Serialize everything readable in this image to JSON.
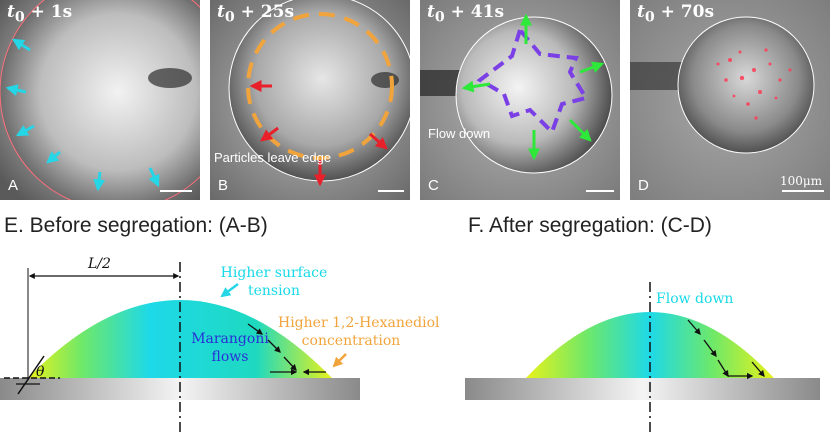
{
  "panels": [
    {
      "time_base": "t",
      "time_sub": "0",
      "time_rest": " + 1s",
      "letter": "A"
    },
    {
      "time_base": "t",
      "time_sub": "0",
      "time_rest": " + 25s",
      "letter": "B",
      "note": "Particles leave edge"
    },
    {
      "time_base": "t",
      "time_sub": "0",
      "time_rest": " + 41s",
      "letter": "C",
      "note": "Flow down"
    },
    {
      "time_base": "t",
      "time_sub": "0",
      "time_rest": " + 70s",
      "letter": "D",
      "scale": "100μm"
    }
  ],
  "section_e": {
    "title": "E. Before segregation: (A-B)",
    "half_length": "L/2",
    "angle": "θ",
    "surface_tension": [
      "Higher surface",
      "tension"
    ],
    "concentration": [
      "Higher 1,2-Hexanediol",
      "concentration"
    ],
    "marangoni": [
      "Marangoni",
      "flows"
    ]
  },
  "section_f": {
    "title": "F. After segregation: (C-D)",
    "flow": "Flow down"
  },
  "colors": {
    "cyan_arrow": "#24d6e6",
    "red_arrow": "#e8202a",
    "orange_dash": "#f2a43c",
    "purple_dash": "#7b3fe6",
    "green_arrow": "#2ee83a",
    "cyan_text": "#18d9e8",
    "orange_text": "#f2a43c",
    "blue_text": "#2b2fd6"
  }
}
